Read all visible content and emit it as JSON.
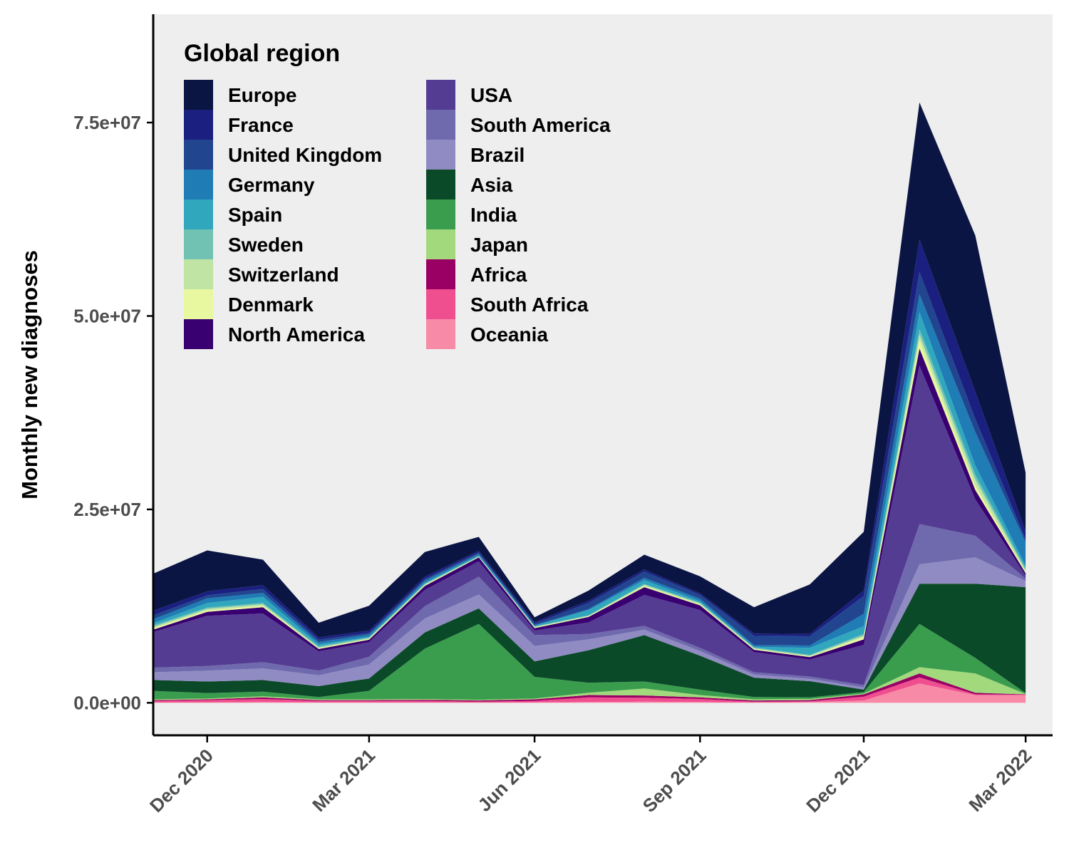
{
  "chart_data": {
    "type": "area",
    "stacked": true,
    "ylabel": "Monthly new diagnoses",
    "xlabel": "",
    "ylim": [
      -4200000,
      89000000
    ],
    "yticks": [
      0,
      25000000,
      50000000,
      75000000
    ],
    "ytick_labels": [
      "0.0e+00",
      "2.5e+07",
      "5.0e+07",
      "7.5e+07"
    ],
    "xlim": [
      "2020-11-01",
      "2022-03-16"
    ],
    "xticks": [
      "2020-12-01",
      "2021-03-01",
      "2021-06-01",
      "2021-09-01",
      "2021-12-01",
      "2022-03-01"
    ],
    "xtick_labels": [
      "Dec 2020",
      "Mar 2021",
      "Jun 2021",
      "Sep 2021",
      "Dec 2021",
      "Mar 2022"
    ],
    "background": "#eeeeee",
    "grid": false,
    "legend": {
      "title": "Global region",
      "placement": "top-left, inside, two columns"
    },
    "x": [
      "2020-11-01",
      "2020-12-01",
      "2021-01-01",
      "2021-02-01",
      "2021-03-01",
      "2021-04-01",
      "2021-05-01",
      "2021-06-01",
      "2021-07-01",
      "2021-08-01",
      "2021-09-01",
      "2021-10-01",
      "2021-11-01",
      "2021-12-01",
      "2022-01-01",
      "2022-02-01",
      "2022-03-01"
    ],
    "series": [
      {
        "name": "Oceania",
        "color": "#f78aa7",
        "values": [
          50000,
          50000,
          100000,
          50000,
          50000,
          50000,
          50000,
          50000,
          100000,
          150000,
          100000,
          50000,
          100000,
          300000,
          2500000,
          1000000,
          1000000
        ]
      },
      {
        "name": "South Africa",
        "color": "#f04f8f",
        "values": [
          200000,
          300000,
          400000,
          200000,
          200000,
          200000,
          100000,
          200000,
          600000,
          500000,
          400000,
          100000,
          100000,
          500000,
          800000,
          100000,
          50000
        ]
      },
      {
        "name": "Africa",
        "color": "#9a0064",
        "values": [
          100000,
          100000,
          200000,
          100000,
          100000,
          150000,
          150000,
          200000,
          300000,
          300000,
          200000,
          150000,
          150000,
          300000,
          500000,
          200000,
          50000
        ]
      },
      {
        "name": "Japan",
        "color": "#a2d97d",
        "values": [
          100000,
          100000,
          150000,
          100000,
          100000,
          100000,
          100000,
          100000,
          300000,
          900000,
          300000,
          150000,
          150000,
          100000,
          800000,
          2500000,
          50000
        ]
      },
      {
        "name": "India",
        "color": "#3a9d4d",
        "values": [
          1100000,
          700000,
          600000,
          300000,
          1100000,
          6500000,
          9800000,
          2800000,
          1300000,
          900000,
          700000,
          300000,
          200000,
          200000,
          5600000,
          2000000,
          100000
        ]
      },
      {
        "name": "Asia",
        "color": "#0b4a28",
        "values": [
          1400000,
          1500000,
          1500000,
          1400000,
          1600000,
          2100000,
          2000000,
          2000000,
          4200000,
          6000000,
          4400000,
          2500000,
          2100000,
          300000,
          5200000,
          9600000,
          13700000
        ]
      },
      {
        "name": "Brazil",
        "color": "#908bc2",
        "values": [
          1000000,
          1400000,
          1500000,
          1400000,
          1800000,
          1800000,
          1800000,
          2000000,
          1400000,
          700000,
          600000,
          400000,
          300000,
          300000,
          2500000,
          3400000,
          800000
        ]
      },
      {
        "name": "South America",
        "color": "#6f6aad",
        "values": [
          600000,
          600000,
          800000,
          600000,
          1000000,
          1600000,
          2300000,
          1400000,
          700000,
          500000,
          400000,
          300000,
          300000,
          300000,
          5200000,
          2800000,
          300000
        ]
      },
      {
        "name": "USA",
        "color": "#553c93",
        "values": [
          4600000,
          6500000,
          6300000,
          2500000,
          1900000,
          2100000,
          2000000,
          600000,
          1500000,
          4000000,
          4900000,
          2600000,
          2200000,
          5200000,
          20500000,
          4700000,
          400000
        ]
      },
      {
        "name": "North America",
        "color": "#380070",
        "values": [
          300000,
          500000,
          800000,
          300000,
          300000,
          500000,
          500000,
          300000,
          700000,
          1000000,
          600000,
          300000,
          300000,
          700000,
          2200000,
          1200000,
          300000
        ]
      },
      {
        "name": "Denmark",
        "color": "#e8f8a0",
        "values": [
          200000,
          200000,
          200000,
          100000,
          100000,
          100000,
          50000,
          100000,
          100000,
          150000,
          150000,
          100000,
          100000,
          300000,
          1100000,
          600000,
          200000
        ]
      },
      {
        "name": "Switzerland",
        "color": "#bfe4a4",
        "values": [
          150000,
          200000,
          200000,
          100000,
          100000,
          100000,
          50000,
          50000,
          50000,
          150000,
          100000,
          100000,
          100000,
          200000,
          700000,
          800000,
          200000
        ]
      },
      {
        "name": "Sweden",
        "color": "#72c2b3",
        "values": [
          200000,
          150000,
          150000,
          150000,
          100000,
          100000,
          50000,
          50000,
          50000,
          100000,
          100000,
          100000,
          100000,
          200000,
          700000,
          600000,
          200000
        ]
      },
      {
        "name": "Spain",
        "color": "#31a7bd",
        "values": [
          300000,
          600000,
          800000,
          250000,
          100000,
          100000,
          100000,
          100000,
          700000,
          500000,
          200000,
          100000,
          900000,
          1000000,
          2200000,
          1200000,
          400000
        ]
      },
      {
        "name": "Germany",
        "color": "#1f7cb5",
        "values": [
          500000,
          600000,
          500000,
          300000,
          300000,
          300000,
          200000,
          100000,
          100000,
          300000,
          300000,
          200000,
          300000,
          1600000,
          2300000,
          4300000,
          3000000
        ]
      },
      {
        "name": "United Kingdom",
        "color": "#21468f",
        "values": [
          500000,
          400000,
          500000,
          300000,
          200000,
          200000,
          200000,
          200000,
          800000,
          800000,
          500000,
          1200000,
          1200000,
          2300000,
          2900000,
          1700000,
          400000
        ]
      },
      {
        "name": "France",
        "color": "#1a1f80",
        "values": [
          600000,
          500000,
          500000,
          300000,
          300000,
          300000,
          200000,
          200000,
          300000,
          300000,
          200000,
          300000,
          300000,
          700000,
          4200000,
          3500000,
          1000000
        ]
      },
      {
        "name": "Europe",
        "color": "#0b1543",
        "values": [
          4800000,
          5300000,
          3300000,
          1900000,
          3200000,
          3200000,
          1800000,
          600000,
          1300000,
          1900000,
          2200000,
          3400000,
          6400000,
          7600000,
          17700000,
          20200000,
          7600000
        ]
      }
    ]
  }
}
